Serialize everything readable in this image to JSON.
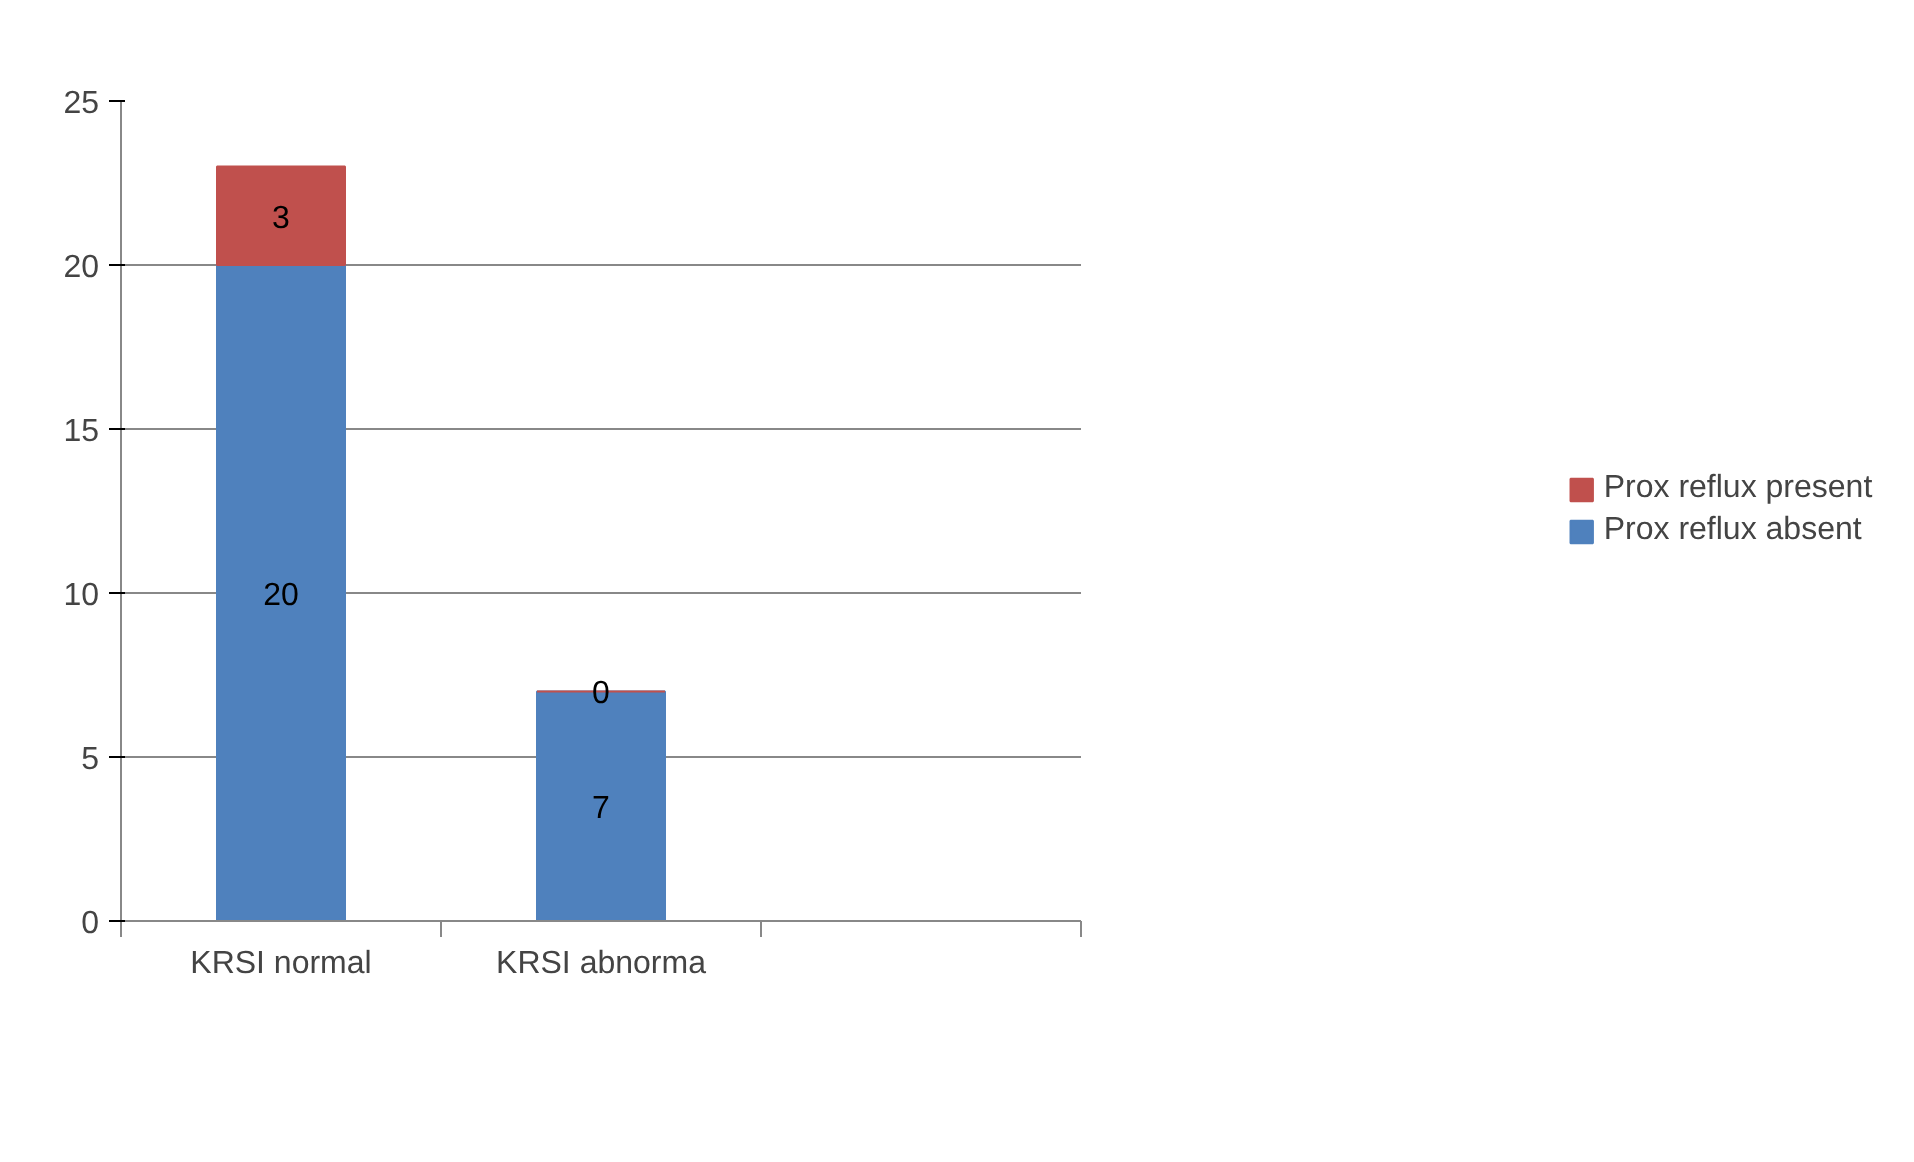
{
  "chart_data": {
    "type": "bar",
    "stacked": true,
    "categories": [
      "KRSI normal",
      "KRSI abnorma",
      null
    ],
    "series": [
      {
        "name": "Prox reflux absent",
        "color": "#4f81bd",
        "values": [
          20,
          7,
          null
        ]
      },
      {
        "name": "Prox reflux present",
        "color": "#c0504d",
        "values": [
          3,
          0,
          null
        ]
      }
    ],
    "ylim": [
      0,
      25
    ],
    "yticks": [
      0,
      5,
      10,
      15,
      20,
      25
    ],
    "grid": "y",
    "legend": "right",
    "data_labels": true
  }
}
